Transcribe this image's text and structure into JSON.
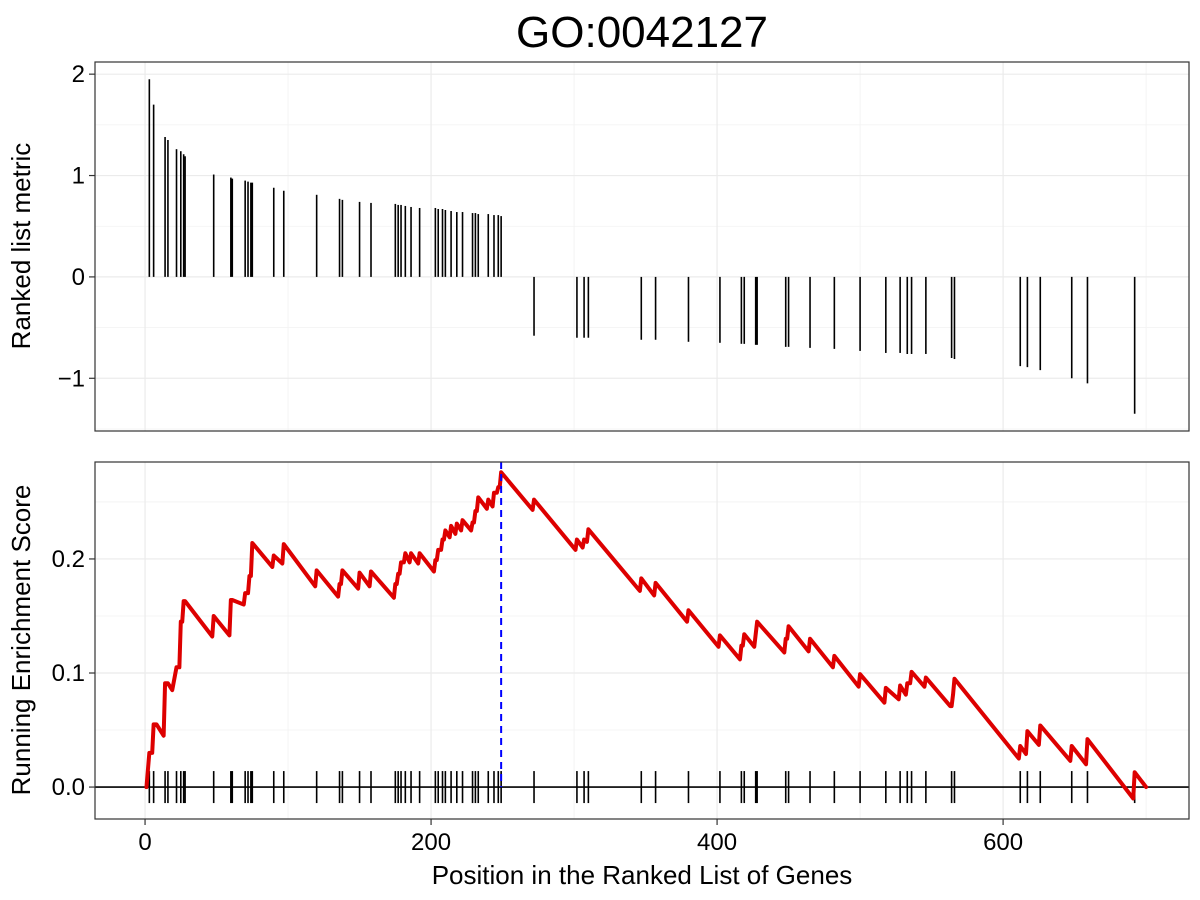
{
  "chart_data": {
    "type": "gsea",
    "title": "GO:0042127",
    "xlabel": "Position in the Ranked List of Genes",
    "xlim": [
      -35,
      730
    ],
    "x_ticks": [
      0,
      200,
      400,
      600
    ],
    "x_tick_labels": [
      "0",
      "200",
      "400",
      "600"
    ],
    "grid": true,
    "panels": [
      {
        "type": "bar",
        "ylabel": "Ranked list metric",
        "ylim": [
          -1.52,
          2.12
        ],
        "y_ticks": [
          -1,
          0,
          1,
          2
        ],
        "y_tick_labels": [
          "−1",
          "0",
          "1",
          "2"
        ],
        "points": [
          {
            "x": 3,
            "y": 1.95
          },
          {
            "x": 6,
            "y": 1.7
          },
          {
            "x": 14,
            "y": 1.38
          },
          {
            "x": 16,
            "y": 1.35
          },
          {
            "x": 22,
            "y": 1.26
          },
          {
            "x": 25,
            "y": 1.24
          },
          {
            "x": 27,
            "y": 1.21
          },
          {
            "x": 28,
            "y": 1.19
          },
          {
            "x": 48,
            "y": 1.01
          },
          {
            "x": 60,
            "y": 0.98
          },
          {
            "x": 61,
            "y": 0.97
          },
          {
            "x": 70,
            "y": 0.95
          },
          {
            "x": 72,
            "y": 0.94
          },
          {
            "x": 74,
            "y": 0.93
          },
          {
            "x": 75,
            "y": 0.93
          },
          {
            "x": 90,
            "y": 0.88
          },
          {
            "x": 97,
            "y": 0.85
          },
          {
            "x": 120,
            "y": 0.81
          },
          {
            "x": 136,
            "y": 0.77
          },
          {
            "x": 138,
            "y": 0.76
          },
          {
            "x": 150,
            "y": 0.74
          },
          {
            "x": 158,
            "y": 0.73
          },
          {
            "x": 175,
            "y": 0.72
          },
          {
            "x": 177,
            "y": 0.71
          },
          {
            "x": 179,
            "y": 0.71
          },
          {
            "x": 182,
            "y": 0.7
          },
          {
            "x": 186,
            "y": 0.69
          },
          {
            "x": 192,
            "y": 0.68
          },
          {
            "x": 203,
            "y": 0.68
          },
          {
            "x": 205,
            "y": 0.67
          },
          {
            "x": 208,
            "y": 0.67
          },
          {
            "x": 210,
            "y": 0.66
          },
          {
            "x": 214,
            "y": 0.65
          },
          {
            "x": 218,
            "y": 0.64
          },
          {
            "x": 222,
            "y": 0.64
          },
          {
            "x": 229,
            "y": 0.63
          },
          {
            "x": 231,
            "y": 0.63
          },
          {
            "x": 233,
            "y": 0.62
          },
          {
            "x": 240,
            "y": 0.62
          },
          {
            "x": 244,
            "y": 0.61
          },
          {
            "x": 247,
            "y": 0.61
          },
          {
            "x": 249,
            "y": 0.6
          },
          {
            "x": 272,
            "y": -0.58
          },
          {
            "x": 302,
            "y": -0.6
          },
          {
            "x": 307,
            "y": -0.6
          },
          {
            "x": 310,
            "y": -0.6
          },
          {
            "x": 347,
            "y": -0.62
          },
          {
            "x": 357,
            "y": -0.62
          },
          {
            "x": 380,
            "y": -0.64
          },
          {
            "x": 402,
            "y": -0.65
          },
          {
            "x": 417,
            "y": -0.66
          },
          {
            "x": 419,
            "y": -0.66
          },
          {
            "x": 427,
            "y": -0.67
          },
          {
            "x": 428,
            "y": -0.67
          },
          {
            "x": 448,
            "y": -0.69
          },
          {
            "x": 450,
            "y": -0.69
          },
          {
            "x": 465,
            "y": -0.7
          },
          {
            "x": 482,
            "y": -0.71
          },
          {
            "x": 500,
            "y": -0.73
          },
          {
            "x": 518,
            "y": -0.75
          },
          {
            "x": 528,
            "y": -0.75
          },
          {
            "x": 533,
            "y": -0.76
          },
          {
            "x": 536,
            "y": -0.76
          },
          {
            "x": 546,
            "y": -0.76
          },
          {
            "x": 564,
            "y": -0.8
          },
          {
            "x": 566,
            "y": -0.81
          },
          {
            "x": 612,
            "y": -0.88
          },
          {
            "x": 617,
            "y": -0.89
          },
          {
            "x": 626,
            "y": -0.92
          },
          {
            "x": 648,
            "y": -1.0
          },
          {
            "x": 659,
            "y": -1.05
          },
          {
            "x": 692,
            "y": -1.35
          }
        ]
      },
      {
        "type": "line",
        "ylabel": "Running Enrichment Score",
        "ylim": [
          -0.028,
          0.285
        ],
        "y_ticks": [
          0.0,
          0.1,
          0.2
        ],
        "y_tick_labels": [
          "0.0",
          "0.1",
          "0.2"
        ],
        "series": [
          {
            "color": "#dd0000",
            "x": [
              1,
              3,
              5,
              6,
              8,
              13,
              14,
              16,
              19,
              22,
              24,
              25,
              26,
              27,
              28,
              47,
              48,
              59,
              60,
              61,
              69,
              70,
              72,
              73,
              74,
              75,
              89,
              90,
              96,
              97,
              119,
              120,
              135,
              136,
              137,
              138,
              149,
              150,
              157,
              158,
              174,
              175,
              176,
              177,
              178,
              179,
              181,
              182,
              185,
              186,
              191,
              192,
              202,
              203,
              204,
              205,
              207,
              208,
              209,
              210,
              213,
              214,
              217,
              218,
              221,
              222,
              228,
              229,
              230,
              231,
              232,
              233,
              239,
              240,
              243,
              244,
              246,
              247,
              248,
              249,
              271,
              272,
              301,
              302,
              306,
              307,
              309,
              310,
              346,
              347,
              356,
              357,
              379,
              380,
              401,
              402,
              416,
              417,
              418,
              419,
              426,
              427,
              428,
              447,
              448,
              449,
              450,
              464,
              465,
              481,
              482,
              499,
              500,
              517,
              518,
              527,
              528,
              532,
              533,
              535,
              536,
              545,
              546,
              563,
              564,
              565,
              566,
              611,
              612,
              616,
              617,
              625,
              626,
              647,
              648,
              658,
              659,
              691,
              692,
              700
            ],
            "y": [
              0.0,
              0.03,
              0.03,
              0.055,
              0.055,
              0.045,
              0.091,
              0.091,
              0.085,
              0.105,
              0.105,
              0.145,
              0.145,
              0.163,
              0.163,
              0.132,
              0.15,
              0.133,
              0.164,
              0.164,
              0.16,
              0.17,
              0.17,
              0.185,
              0.185,
              0.214,
              0.193,
              0.203,
              0.196,
              0.213,
              0.176,
              0.19,
              0.167,
              0.178,
              0.178,
              0.19,
              0.174,
              0.188,
              0.176,
              0.189,
              0.166,
              0.178,
              0.178,
              0.187,
              0.187,
              0.197,
              0.197,
              0.205,
              0.197,
              0.205,
              0.196,
              0.205,
              0.189,
              0.199,
              0.199,
              0.208,
              0.208,
              0.217,
              0.217,
              0.225,
              0.219,
              0.229,
              0.222,
              0.231,
              0.225,
              0.234,
              0.225,
              0.232,
              0.232,
              0.242,
              0.242,
              0.254,
              0.244,
              0.252,
              0.246,
              0.258,
              0.258,
              0.263,
              0.263,
              0.276,
              0.243,
              0.252,
              0.208,
              0.217,
              0.21,
              0.217,
              0.215,
              0.226,
              0.172,
              0.183,
              0.168,
              0.179,
              0.145,
              0.155,
              0.123,
              0.133,
              0.112,
              0.124,
              0.124,
              0.134,
              0.123,
              0.134,
              0.145,
              0.118,
              0.13,
              0.13,
              0.141,
              0.119,
              0.13,
              0.105,
              0.115,
              0.088,
              0.099,
              0.074,
              0.087,
              0.077,
              0.089,
              0.081,
              0.091,
              0.091,
              0.101,
              0.088,
              0.096,
              0.071,
              0.071,
              0.081,
              0.095,
              0.025,
              0.036,
              0.029,
              0.049,
              0.037,
              0.054,
              0.023,
              0.036,
              0.02,
              0.042,
              -0.01,
              0.013,
              0.0
            ]
          }
        ],
        "hline": 0.0,
        "vline_x": 249,
        "vline_color": "#0000ff",
        "rug_x": [
          3,
          6,
          14,
          16,
          22,
          25,
          27,
          28,
          48,
          60,
          61,
          70,
          72,
          74,
          75,
          90,
          97,
          120,
          136,
          138,
          150,
          158,
          175,
          177,
          179,
          182,
          186,
          192,
          203,
          205,
          208,
          210,
          214,
          218,
          222,
          229,
          231,
          233,
          240,
          244,
          247,
          249,
          272,
          302,
          307,
          310,
          347,
          357,
          380,
          402,
          417,
          419,
          427,
          428,
          448,
          450,
          465,
          482,
          500,
          518,
          528,
          533,
          536,
          546,
          564,
          566,
          612,
          617,
          626,
          648,
          659,
          692
        ]
      }
    ]
  }
}
